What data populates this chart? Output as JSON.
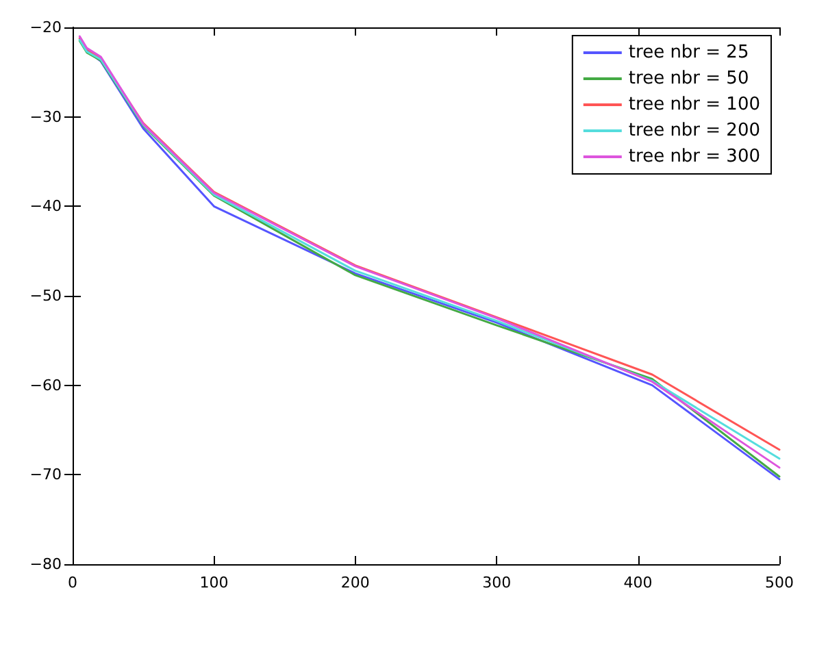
{
  "chart_data": {
    "type": "line",
    "x": [
      5,
      10,
      20,
      50,
      100,
      200,
      300,
      410,
      500
    ],
    "series": [
      {
        "name": "tree nbr = 25",
        "color": "#5555ff",
        "values": [
          -21.3,
          -22.6,
          -23.8,
          -31.3,
          -40.0,
          -47.5,
          -53.0,
          -60.0,
          -70.5
        ]
      },
      {
        "name": "tree nbr = 50",
        "color": "#44aa44",
        "values": [
          -21.5,
          -22.8,
          -23.7,
          -31.0,
          -38.8,
          -47.7,
          -53.3,
          -59.3,
          -70.2
        ]
      },
      {
        "name": "tree nbr = 100",
        "color": "#ff5555",
        "values": [
          -21.2,
          -22.4,
          -23.5,
          -30.7,
          -38.4,
          -46.6,
          -52.4,
          -58.8,
          -67.2
        ]
      },
      {
        "name": "tree nbr = 200",
        "color": "#55dddd",
        "values": [
          -21.4,
          -22.7,
          -23.6,
          -30.9,
          -38.7,
          -47.2,
          -52.8,
          -59.5,
          -68.2
        ]
      },
      {
        "name": "tree nbr = 300",
        "color": "#dd55dd",
        "values": [
          -21.0,
          -22.3,
          -23.3,
          -30.8,
          -38.5,
          -46.7,
          -52.5,
          -59.6,
          -69.2
        ]
      }
    ],
    "xlim": [
      0,
      500
    ],
    "xticks": [
      0,
      100,
      200,
      300,
      400,
      500
    ],
    "ylim": [
      -80,
      -20
    ],
    "yticks": [
      -80,
      -70,
      -60,
      -50,
      -40,
      -30,
      -20
    ],
    "legend": "top right",
    "grid": false,
    "marker": "none",
    "line_style": "solid"
  }
}
